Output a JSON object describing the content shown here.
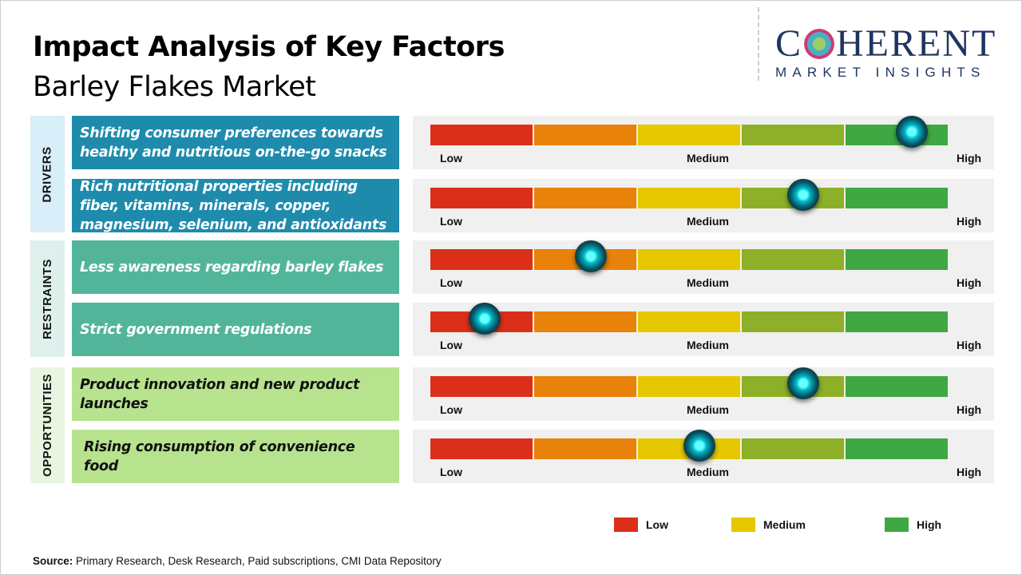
{
  "header": {
    "title": "Impact Analysis of Key Factors",
    "subtitle": "Barley Flakes Market"
  },
  "logo": {
    "main_left": "C",
    "main_right": "HERENT",
    "sub": "MARKET INSIGHTS"
  },
  "colors": {
    "segments": [
      "#dc2f1a",
      "#e8820a",
      "#e6c800",
      "#8db028",
      "#3fa843"
    ],
    "drivers": "#1e8bad",
    "restraints": "#52b59a",
    "opportunities": "#b7e38f",
    "knob": "#00bcd4"
  },
  "categories": [
    {
      "label": "DRIVERS",
      "bg": "#d8eef8"
    },
    {
      "label": "RESTRAINTS",
      "bg": "#deefec"
    },
    {
      "label": "OPPORTUNITIES",
      "bg": "#e8f5e0"
    }
  ],
  "scale_labels": {
    "low": "Low",
    "medium": "Medium",
    "high": "High"
  },
  "chart_data": {
    "type": "gauge-bars",
    "scale": [
      "Low",
      "Medium",
      "High"
    ],
    "range": [
      0,
      1
    ],
    "factors": [
      {
        "category": "DRIVERS",
        "text": "Shifting consumer preferences towards healthy and nutritious on-the-go snacks",
        "impact": 0.93
      },
      {
        "category": "DRIVERS",
        "text": "Rich nutritional properties including fiber, vitamins, minerals, copper, magnesium, selenium, and antioxidants",
        "impact": 0.72
      },
      {
        "category": "RESTRAINTS",
        "text": "Less awareness regarding barley flakes",
        "impact": 0.31
      },
      {
        "category": "RESTRAINTS",
        "text": "Strict government regulations",
        "impact": 0.105
      },
      {
        "category": "OPPORTUNITIES",
        "text": "Product innovation and new product launches",
        "impact": 0.72
      },
      {
        "category": "OPPORTUNITIES",
        "text": "Rising consumption of convenience food",
        "impact": 0.52
      }
    ],
    "legend": [
      {
        "label": "Low",
        "color": "#dc2f1a"
      },
      {
        "label": "Medium",
        "color": "#e6c800"
      },
      {
        "label": "High",
        "color": "#3fa843"
      }
    ]
  },
  "footer": {
    "source_label": "Source:",
    "source_text": " Primary Research, Desk Research, Paid subscriptions, CMI Data Repository"
  }
}
